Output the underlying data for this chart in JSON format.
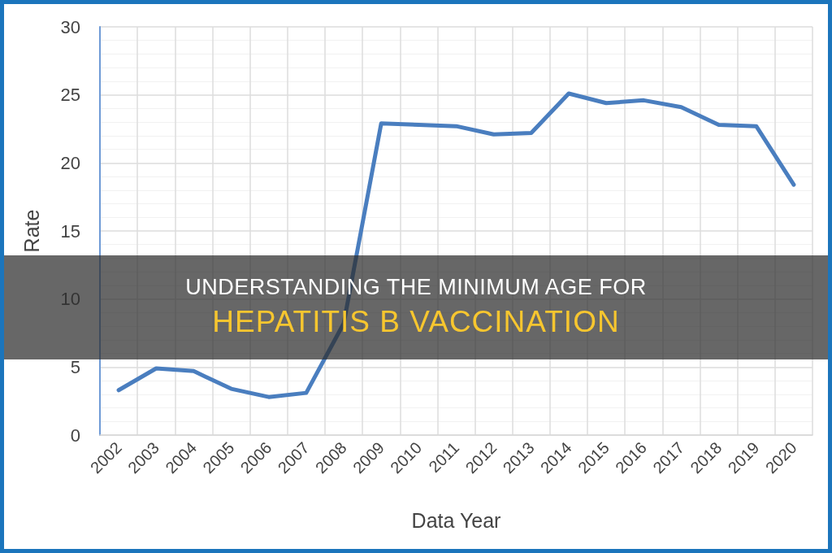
{
  "chart_data": {
    "type": "line",
    "title": "UNDERSTANDING THE MINIMUM AGE FOR",
    "subtitle": "HEPATITIS B VACCINATION",
    "xlabel": "Data Year",
    "ylabel": "Rate",
    "categories": [
      "2002",
      "2003",
      "2004",
      "2005",
      "2006",
      "2007",
      "2008",
      "2009",
      "2010",
      "2011",
      "2012",
      "2013",
      "2014",
      "2015",
      "2016",
      "2017",
      "2018",
      "2019",
      "2020"
    ],
    "series": [
      {
        "color": "#4a7ebf",
        "values": [
          3.3,
          4.9,
          4.7,
          3.4,
          2.8,
          3.1,
          8.2,
          22.9,
          22.8,
          22.7,
          22.1,
          22.2,
          25.1,
          24.4,
          24.6,
          24.1,
          22.8,
          22.7,
          18.4
        ]
      }
    ],
    "ylim": [
      0,
      30
    ],
    "yticks": [
      0,
      5,
      10,
      15,
      20,
      25,
      30
    ],
    "grid": true,
    "marker": "none",
    "line_style": "solid"
  }
}
